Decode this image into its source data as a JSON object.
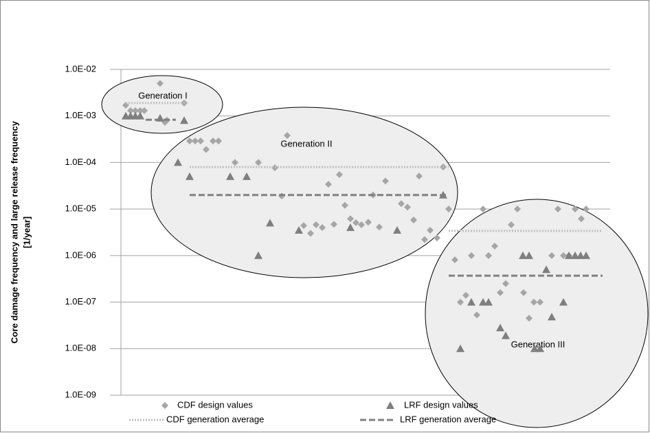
{
  "chart_data": {
    "type": "scatter",
    "y_label": [
      "Core damage frequency and large release frequency",
      "[1/year]"
    ],
    "log_y": true,
    "grid": true,
    "ylim": [
      1e-09,
      0.01
    ],
    "yticks": [
      {
        "value": 1e-09,
        "label": "1.0E-09"
      },
      {
        "value": 1e-08,
        "label": "1.0E-08"
      },
      {
        "value": 1e-07,
        "label": "1.0E-07"
      },
      {
        "value": 1e-06,
        "label": "1.0E-06"
      },
      {
        "value": 1e-05,
        "label": "1.0E-05"
      },
      {
        "value": 0.0001,
        "label": "1.0E-04"
      },
      {
        "value": 0.001,
        "label": "1.0E-03"
      },
      {
        "value": 0.01,
        "label": "1.0E-02"
      }
    ],
    "xlim": [
      0,
      712
    ],
    "annotations": [
      "Generation I",
      "Generation II",
      "Generation III"
    ],
    "series": [
      {
        "name": "CDF design values",
        "kind": "diamond",
        "color": "#a6a6a6",
        "x": [
          7,
          14,
          21,
          28,
          34,
          57,
          64,
          67,
          92,
          100,
          108,
          116,
          124,
          134,
          142,
          166,
          200,
          224,
          234,
          242,
          266,
          276,
          284,
          293,
          302,
          310,
          318,
          326,
          334,
          342,
          350,
          360,
          367,
          376,
          385,
          408,
          417,
          426,
          434,
          442,
          450,
          460,
          469,
          477,
          486,
          494,
          502,
          510,
          518,
          527,
          535,
          544,
          552,
          560,
          568,
          577,
          586,
          594,
          601,
          610,
          627,
          636,
          644,
          652,
          661,
          670,
          677
        ],
        "values": [
          0.0017,
          0.0013,
          0.0013,
          0.0013,
          0.0013,
          0.005,
          0.00073,
          0.00081,
          0.0019,
          0.00029,
          0.00029,
          0.00029,
          0.00019,
          0.00029,
          0.00029,
          0.0001,
          0.0001,
          7.7e-05,
          1.9e-05,
          0.00038,
          4.4e-06,
          3e-06,
          4.6e-06,
          4e-06,
          3.4e-05,
          4.7e-06,
          5.5e-05,
          1.2e-05,
          6.2e-06,
          5.1e-06,
          4.6e-06,
          5.2e-06,
          2e-05,
          4.1e-06,
          4e-05,
          1.3e-05,
          1.1e-05,
          5.8e-06,
          5.1e-05,
          2.2e-06,
          3.5e-06,
          2.4e-06,
          8e-05,
          1e-05,
          8.1e-07,
          1e-07,
          1.4e-07,
          1e-06,
          5.3e-08,
          1e-05,
          1e-06,
          1.6e-06,
          1.6e-07,
          2.5e-07,
          4.6e-06,
          1e-05,
          1.6e-07,
          4.5e-08,
          1e-07,
          1e-07,
          1e-06,
          1e-05,
          1e-06,
          1e-06,
          1e-05,
          6.2e-06,
          1e-05
        ]
      },
      {
        "name": "LRF design values",
        "kind": "triangle",
        "color": "#7f7f7f",
        "x": [
          7,
          14,
          21,
          28,
          57,
          92,
          83,
          100,
          159,
          183,
          200,
          217,
          259,
          334,
          402,
          469,
          494,
          510,
          527,
          535,
          552,
          560,
          585,
          594,
          602,
          610,
          619,
          627,
          644,
          652,
          661,
          669,
          677
        ],
        "values": [
          0.001,
          0.001,
          0.001,
          0.001,
          0.0009,
          0.0008,
          0.0001,
          5e-05,
          5e-05,
          5e-05,
          1e-06,
          5e-06,
          3.5e-06,
          4e-06,
          3.5e-06,
          2e-05,
          1e-08,
          1e-07,
          1e-07,
          1e-07,
          2.8e-08,
          1.9e-08,
          1e-06,
          1e-06,
          1e-08,
          1e-08,
          5e-07,
          4.8e-08,
          1e-07,
          1e-06,
          1e-06,
          1e-06,
          1e-06
        ]
      },
      {
        "name": "CDF generation average",
        "kind": "dotted",
        "color": "#bfbfbf",
        "x": [
          7,
          97,
          null,
          100,
          477,
          null,
          477,
          701
        ],
        "values": [
          0.0019,
          0.0019,
          null,
          8e-05,
          8e-05,
          null,
          3.4e-06,
          3.4e-06
        ]
      },
      {
        "name": "LRF generation average",
        "kind": "dashed",
        "color": "#808080",
        "x": [
          36,
          80,
          null,
          100,
          477,
          null,
          477,
          701
        ],
        "values": [
          0.00083,
          0.00083,
          null,
          2e-05,
          2e-05,
          null,
          3.7e-07,
          3.7e-07
        ]
      }
    ]
  }
}
